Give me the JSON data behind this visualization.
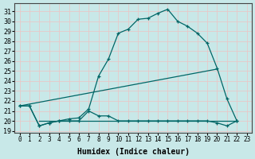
{
  "xlabel": "Humidex (Indice chaleur)",
  "background_color": "#c8e8e8",
  "grid_color": "#e8c8c8",
  "line_color": "#006666",
  "xlim": [
    -0.5,
    23.5
  ],
  "ylim": [
    18.8,
    31.8
  ],
  "xticks": [
    0,
    1,
    2,
    3,
    4,
    5,
    6,
    7,
    8,
    9,
    10,
    11,
    12,
    13,
    14,
    15,
    16,
    17,
    18,
    19,
    20,
    21,
    22,
    23
  ],
  "yticks": [
    19,
    20,
    21,
    22,
    23,
    24,
    25,
    26,
    27,
    28,
    29,
    30,
    31
  ],
  "series_main": {
    "x": [
      0,
      1,
      2,
      3,
      4,
      5,
      6,
      7,
      8,
      9,
      10,
      11,
      12,
      13,
      14,
      15,
      16,
      17,
      18,
      19,
      20,
      21,
      22
    ],
    "y": [
      21.5,
      21.5,
      19.5,
      19.8,
      20.0,
      20.2,
      20.3,
      21.2,
      24.5,
      26.2,
      28.8,
      29.2,
      30.2,
      30.3,
      30.8,
      31.2,
      30.0,
      29.5,
      28.8,
      27.8,
      25.3,
      22.2,
      20.0
    ]
  },
  "series_low": {
    "x": [
      0,
      1,
      2,
      3,
      4,
      5,
      6,
      7,
      8,
      9,
      10,
      11,
      12,
      13,
      14,
      15,
      16,
      17,
      18,
      19,
      20,
      21,
      22
    ],
    "y": [
      21.5,
      21.5,
      19.5,
      19.8,
      20.0,
      20.0,
      20.0,
      21.0,
      20.5,
      20.5,
      20.0,
      20.0,
      20.0,
      20.0,
      20.0,
      20.0,
      20.0,
      20.0,
      20.0,
      20.0,
      19.8,
      19.5,
      20.0
    ]
  },
  "series_diag1": {
    "x": [
      0,
      20
    ],
    "y": [
      21.5,
      25.2
    ]
  },
  "series_diag2": {
    "x": [
      2,
      22
    ],
    "y": [
      20.0,
      20.0
    ]
  }
}
